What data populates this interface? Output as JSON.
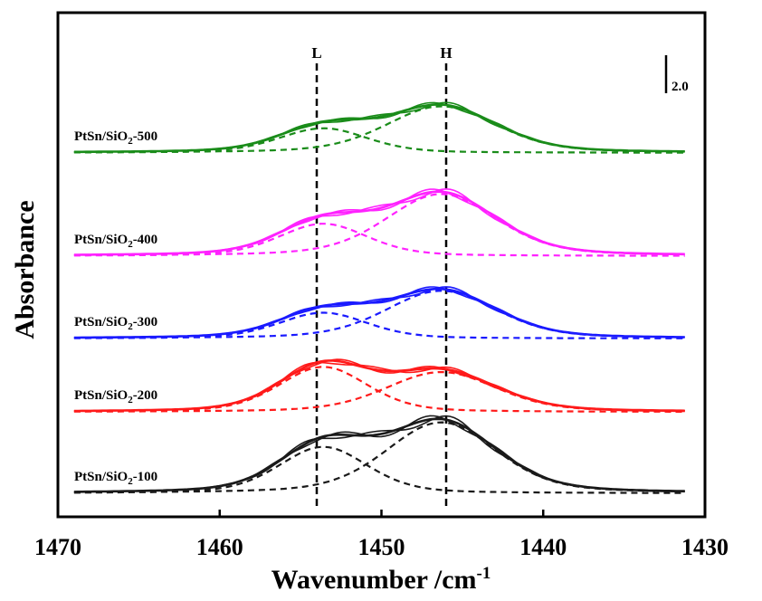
{
  "chart_data": {
    "type": "line",
    "xlabel": "Wavenumber /cm",
    "xlabel_sup": "-1",
    "ylabel": "Absorbance",
    "xlim": [
      1470,
      1430
    ],
    "x_reversed": true,
    "xticks": [
      "1470",
      "1460",
      "1450",
      "1440",
      "1430"
    ],
    "y_ticks_shown": false,
    "scale_bar_label": "2.0",
    "markers": [
      {
        "label": "L",
        "x": 1454
      },
      {
        "label": "H",
        "x": 1446
      }
    ],
    "series": [
      {
        "name": "PtSn/SiO2-100",
        "label_main": "PtSn/SiO",
        "label_sub": "2",
        "label_tail": "-100",
        "color": "#1a1a1a",
        "offset": 0.0,
        "low_amp": 1.8,
        "high_amp": 2.75
      },
      {
        "name": "PtSn/SiO2-200",
        "label_main": "PtSn/SiO",
        "label_sub": "2",
        "label_tail": "-200",
        "color": "#ff1a1a",
        "offset": 3.15,
        "low_amp": 1.75,
        "high_amp": 1.55
      },
      {
        "name": "PtSn/SiO2-300",
        "label_main": "PtSn/SiO",
        "label_sub": "2",
        "label_tail": "-300",
        "color": "#1a1aff",
        "offset": 6.0,
        "low_amp": 1.0,
        "high_amp": 1.85
      },
      {
        "name": "PtSn/SiO2-400",
        "label_main": "PtSn/SiO",
        "label_sub": "2",
        "label_tail": "-400",
        "color": "#ff22ff",
        "offset": 9.2,
        "low_amp": 1.25,
        "high_amp": 2.4
      },
      {
        "name": "PtSn/SiO2-500",
        "label_main": "PtSn/SiO",
        "label_sub": "2",
        "label_tail": "-500",
        "color": "#1a8c1a",
        "offset": 13.2,
        "low_amp": 0.95,
        "high_amp": 1.8
      }
    ]
  }
}
